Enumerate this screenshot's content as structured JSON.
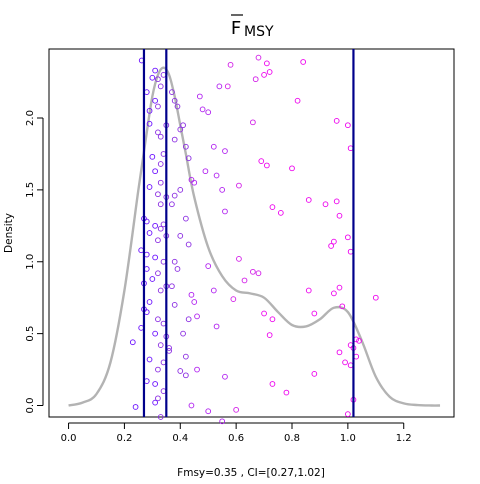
{
  "chart_data": {
    "type": "scatter",
    "title": "F",
    "title_subscript": "MSY",
    "title_overline": true,
    "xlabel": "Fmsy=0.35 , CI=[0.27,1.02]",
    "ylabel": "Density",
    "xlim": [
      -0.07,
      1.38
    ],
    "ylim": [
      -0.08,
      2.48
    ],
    "x_ticks": [
      0.0,
      0.2,
      0.4,
      0.6,
      0.8,
      1.0,
      1.2
    ],
    "x_tick_labels": [
      "0.0",
      "0.2",
      "0.4",
      "0.6",
      "0.8",
      "1.0",
      "1.2"
    ],
    "y_ticks": [
      0.0,
      0.5,
      1.0,
      1.5,
      2.0
    ],
    "y_tick_labels": [
      "0.0",
      "0.5",
      "1.0",
      "1.5",
      "2.0"
    ],
    "grid": false,
    "density_curve": {
      "color": "#b3b3b3",
      "x": [
        0.0,
        0.05,
        0.1,
        0.15,
        0.2,
        0.25,
        0.28,
        0.3,
        0.32,
        0.34,
        0.36,
        0.38,
        0.4,
        0.42,
        0.45,
        0.5,
        0.55,
        0.6,
        0.65,
        0.7,
        0.75,
        0.8,
        0.85,
        0.9,
        0.95,
        1.0,
        1.05,
        1.1,
        1.15,
        1.2,
        1.25,
        1.3,
        1.33
      ],
      "y": [
        0.0,
        0.02,
        0.08,
        0.3,
        0.8,
        1.5,
        1.9,
        2.15,
        2.3,
        2.35,
        2.3,
        2.15,
        1.95,
        1.75,
        1.45,
        1.1,
        0.9,
        0.8,
        0.78,
        0.75,
        0.65,
        0.56,
        0.55,
        0.6,
        0.68,
        0.65,
        0.45,
        0.2,
        0.06,
        0.015,
        0.003,
        0.0,
        0.0
      ]
    },
    "vertical_lines": {
      "color": "#00008b",
      "x": [
        0.27,
        0.35,
        1.02
      ]
    },
    "point_colors": [
      "#6a0dff",
      "#8a2be2",
      "#b020f0",
      "#d21ee8",
      "#ee00ee"
    ],
    "points": [
      [
        0.262,
        2.4
      ],
      [
        0.28,
        2.18
      ],
      [
        0.29,
        2.05
      ],
      [
        0.3,
        2.28
      ],
      [
        0.31,
        2.33
      ],
      [
        0.32,
        2.27
      ],
      [
        0.31,
        2.12
      ],
      [
        0.32,
        2.08
      ],
      [
        0.33,
        2.22
      ],
      [
        0.34,
        2.3
      ],
      [
        0.29,
        1.96
      ],
      [
        0.32,
        1.9
      ],
      [
        0.33,
        1.87
      ],
      [
        0.35,
        1.95
      ],
      [
        0.3,
        1.73
      ],
      [
        0.33,
        1.68
      ],
      [
        0.34,
        1.75
      ],
      [
        0.31,
        1.63
      ],
      [
        0.33,
        1.55
      ],
      [
        0.29,
        1.52
      ],
      [
        0.32,
        1.47
      ],
      [
        0.35,
        1.45
      ],
      [
        0.33,
        1.4
      ],
      [
        0.27,
        1.3
      ],
      [
        0.28,
        1.28
      ],
      [
        0.31,
        1.25
      ],
      [
        0.33,
        1.23
      ],
      [
        0.34,
        1.26
      ],
      [
        0.29,
        1.2
      ],
      [
        0.32,
        1.15
      ],
      [
        0.35,
        1.18
      ],
      [
        0.26,
        1.08
      ],
      [
        0.28,
        1.05
      ],
      [
        0.31,
        1.03
      ],
      [
        0.34,
        1.0
      ],
      [
        0.28,
        0.95
      ],
      [
        0.32,
        0.92
      ],
      [
        0.3,
        0.88
      ],
      [
        0.27,
        0.85
      ],
      [
        0.33,
        0.8
      ],
      [
        0.35,
        0.83
      ],
      [
        0.29,
        0.72
      ],
      [
        0.27,
        0.67
      ],
      [
        0.28,
        0.65
      ],
      [
        0.32,
        0.6
      ],
      [
        0.34,
        0.57
      ],
      [
        0.26,
        0.54
      ],
      [
        0.31,
        0.5
      ],
      [
        0.35,
        0.48
      ],
      [
        0.23,
        0.44
      ],
      [
        0.33,
        0.42
      ],
      [
        0.36,
        0.4
      ],
      [
        0.36,
        0.38
      ],
      [
        0.29,
        0.32
      ],
      [
        0.34,
        0.3
      ],
      [
        0.32,
        0.25
      ],
      [
        0.28,
        0.17
      ],
      [
        0.31,
        0.15
      ],
      [
        0.34,
        0.1
      ],
      [
        0.32,
        0.05
      ],
      [
        0.31,
        0.02
      ],
      [
        0.24,
        -0.01
      ],
      [
        0.33,
        -0.08
      ],
      [
        0.37,
        2.18
      ],
      [
        0.38,
        2.12
      ],
      [
        0.39,
        2.08
      ],
      [
        0.4,
        1.92
      ],
      [
        0.41,
        1.95
      ],
      [
        0.38,
        1.85
      ],
      [
        0.42,
        1.8
      ],
      [
        0.43,
        1.72
      ],
      [
        0.44,
        1.57
      ],
      [
        0.45,
        1.55
      ],
      [
        0.4,
        1.5
      ],
      [
        0.38,
        1.46
      ],
      [
        0.37,
        1.4
      ],
      [
        0.42,
        1.3
      ],
      [
        0.4,
        1.18
      ],
      [
        0.43,
        1.12
      ],
      [
        0.38,
        1.0
      ],
      [
        0.39,
        0.95
      ],
      [
        0.37,
        0.83
      ],
      [
        0.44,
        0.77
      ],
      [
        0.45,
        0.72
      ],
      [
        0.38,
        0.7
      ],
      [
        0.46,
        0.62
      ],
      [
        0.43,
        0.6
      ],
      [
        0.41,
        0.5
      ],
      [
        0.42,
        0.34
      ],
      [
        0.4,
        0.24
      ],
      [
        0.42,
        0.21
      ],
      [
        0.46,
        0.25
      ],
      [
        0.44,
        0.0
      ],
      [
        0.47,
        2.15
      ],
      [
        0.48,
        2.06
      ],
      [
        0.5,
        2.04
      ],
      [
        0.52,
        1.8
      ],
      [
        0.49,
        1.63
      ],
      [
        0.53,
        1.6
      ],
      [
        0.55,
        1.5
      ],
      [
        0.56,
        1.35
      ],
      [
        0.5,
        0.97
      ],
      [
        0.52,
        0.8
      ],
      [
        0.53,
        0.55
      ],
      [
        0.56,
        0.2
      ],
      [
        0.5,
        -0.04
      ],
      [
        0.55,
        -0.11
      ],
      [
        0.6,
        -0.03
      ],
      [
        0.54,
        2.22
      ],
      [
        0.57,
        2.22
      ],
      [
        0.58,
        2.37
      ],
      [
        0.56,
        1.77
      ],
      [
        0.61,
        1.53
      ],
      [
        0.61,
        1.02
      ],
      [
        0.59,
        0.74
      ],
      [
        0.63,
        0.87
      ],
      [
        0.66,
        0.93
      ],
      [
        0.68,
        0.92
      ],
      [
        0.66,
        1.97
      ],
      [
        0.67,
        2.27
      ],
      [
        0.7,
        2.3
      ],
      [
        0.71,
        2.38
      ],
      [
        0.72,
        2.32
      ],
      [
        0.68,
        2.42
      ],
      [
        0.69,
        1.7
      ],
      [
        0.71,
        1.67
      ],
      [
        0.73,
        1.38
      ],
      [
        0.76,
        1.34
      ],
      [
        0.7,
        0.64
      ],
      [
        0.73,
        0.6
      ],
      [
        0.72,
        0.49
      ],
      [
        0.73,
        0.15
      ],
      [
        0.78,
        0.09
      ],
      [
        0.8,
        1.65
      ],
      [
        0.82,
        2.12
      ],
      [
        0.84,
        2.39
      ],
      [
        0.86,
        1.43
      ],
      [
        0.86,
        0.8
      ],
      [
        0.88,
        0.64
      ],
      [
        0.88,
        0.22
      ],
      [
        0.92,
        1.4
      ],
      [
        0.94,
        1.11
      ],
      [
        0.95,
        1.14
      ],
      [
        0.96,
        1.42
      ],
      [
        0.97,
        1.32
      ],
      [
        0.95,
        0.78
      ],
      [
        0.97,
        0.82
      ],
      [
        0.98,
        0.69
      ],
      [
        0.96,
        1.98
      ],
      [
        1.0,
        1.95
      ],
      [
        1.01,
        1.79
      ],
      [
        1.0,
        1.17
      ],
      [
        1.01,
        1.07
      ],
      [
        0.97,
        0.37
      ],
      [
        0.99,
        0.3
      ],
      [
        1.02,
        0.4
      ],
      [
        1.01,
        0.42
      ],
      [
        1.03,
        0.46
      ],
      [
        1.04,
        0.45
      ],
      [
        1.02,
        0.04
      ],
      [
        1.0,
        -0.06
      ],
      [
        1.1,
        0.75
      ],
      [
        1.03,
        0.34
      ],
      [
        1.01,
        0.28
      ]
    ]
  }
}
